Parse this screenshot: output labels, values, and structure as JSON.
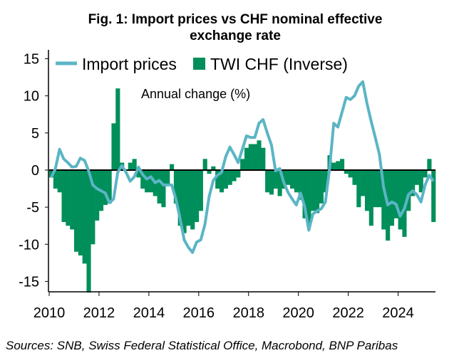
{
  "chart_data": {
    "type": "bar",
    "title_line1": "Fig. 1: Import prices vs CHF nominal effective",
    "title_line2": "exchange rate",
    "annotation": "Annual change (%)",
    "source": "Sources: SNB, Swiss Federal Statistical Office, Macrobond, BNP Paribas",
    "x_start": 2010,
    "x_step_years": 0.16667,
    "xlim": [
      2010,
      2025.5
    ],
    "ylim": [
      -16.4,
      16.2
    ],
    "x_ticks": [
      "2010",
      "2012",
      "2014",
      "2016",
      "2018",
      "2020",
      "2022",
      "2024"
    ],
    "y_ticks": [
      "15",
      "10",
      "5",
      "0",
      "-5",
      "-10",
      "-15"
    ],
    "grid": false,
    "legend_placement": "top-left",
    "series": [
      {
        "name": "Import prices",
        "type": "line",
        "color": "#5BB5C5",
        "values": [
          -1,
          0.2,
          2.8,
          1.5,
          1,
          0.4,
          0.5,
          1.6,
          1.3,
          -0.1,
          -2,
          -2.5,
          -2.8,
          -3.1,
          -4.4,
          -3.9,
          -0.3,
          0.6,
          -0.3,
          -1.5,
          -0.9,
          0.4,
          -0.6,
          -1.2,
          -0.9,
          -1.7,
          -1.4,
          -2,
          -2,
          -2,
          -3.9,
          -6.5,
          -9.4,
          -10.4,
          -11.1,
          -9.7,
          -9.4,
          -7.3,
          -3.6,
          -1.4,
          -0.7,
          -0.3,
          1.8,
          3.1,
          2.1,
          1,
          2.8,
          4.6,
          4.4,
          4.4,
          6.3,
          6.8,
          5,
          3.4,
          -0.1,
          0.2,
          -1.7,
          -3,
          -3.9,
          -4.7,
          -3.1,
          -4.9,
          -8.1,
          -5.9,
          -5.5,
          -5.2,
          -4.3,
          0.2,
          6.3,
          5.8,
          7.8,
          9.8,
          9.5,
          10,
          11.3,
          11.9,
          9,
          6.6,
          4.4,
          2.1,
          -2.3,
          -4.7,
          -4.3,
          -4.6,
          -6.2,
          -5.2,
          -3.3,
          -2.8,
          -3.3,
          -4.3,
          -2,
          -0.7,
          -1.5
        ]
      },
      {
        "name": "TWI CHF (Inverse)",
        "type": "bar",
        "color": "#008F5A",
        "values": [
          -1,
          -2.5,
          -3,
          -7,
          -7.5,
          -8,
          -11,
          -11.5,
          -12.6,
          -16.5,
          -10,
          -6.8,
          -5.5,
          -4.7,
          -4.5,
          6.3,
          11,
          1,
          0,
          1,
          1.5,
          -1,
          -2.5,
          -3,
          -3,
          -3.5,
          -4.5,
          -5,
          -2,
          0.8,
          -4.5,
          -7.5,
          -8.5,
          -7.5,
          -8,
          -7,
          -5.5,
          1.5,
          -0.5,
          0.5,
          -2.5,
          -3,
          -2.5,
          -2,
          -1.5,
          -1,
          1.5,
          3,
          3.5,
          3.5,
          4,
          3,
          -3,
          -3.3,
          -2.5,
          -3.5,
          -2.5,
          -2,
          -2.5,
          -3,
          -4,
          -6.5,
          -7.5,
          -5.5,
          -5.8,
          -4.5,
          -3,
          2,
          1,
          1.2,
          1.5,
          -0.5,
          -1,
          -2,
          -5,
          -3.5,
          -5.5,
          -7.5,
          -5,
          -5,
          -8,
          -9.5,
          -7.5,
          -6.5,
          -8,
          -9,
          -5.5,
          -3.5,
          -2,
          -3,
          -1,
          1.5,
          -7
        ]
      }
    ]
  }
}
